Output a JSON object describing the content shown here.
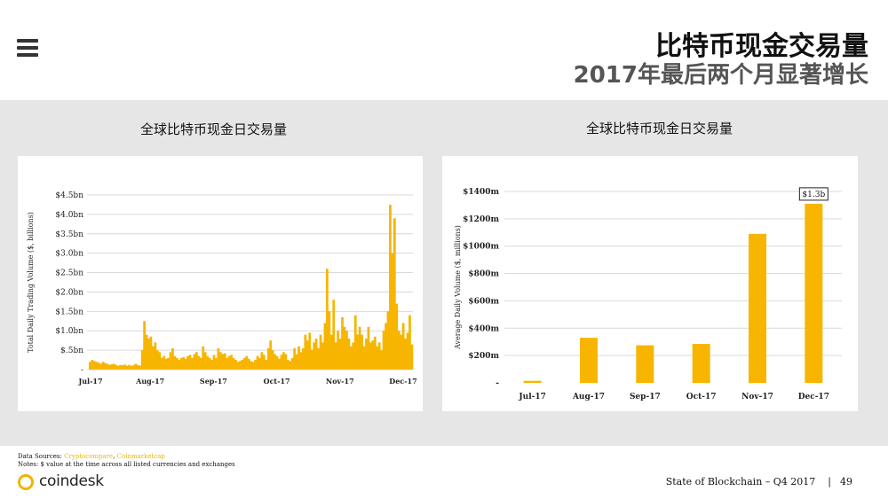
{
  "header": {
    "title_line1": "比特币现金交易量",
    "title_line2": "2017年最后两个月显著增长"
  },
  "colors": {
    "bar": "#f7b500",
    "grid": "#d9d9d9",
    "band": "#e6e6e6"
  },
  "icons": {
    "menu": "hamburger-menu-icon",
    "logo": "coindesk-logo"
  },
  "chart_data": [
    {
      "type": "bar",
      "title": "全球比特币现金日交易量",
      "xlabel": "",
      "ylabel": "Total Daily Trading Volume ($, billions)",
      "x_tick_labels": [
        "Jul-17",
        "Aug-17",
        "Sep-17",
        "Oct-17",
        "Nov-17",
        "Dec-17"
      ],
      "y_tick_labels": [
        "-",
        "$.5bn",
        "$1.0bn",
        "$1.5bn",
        "$2.0bn",
        "$2.5bn",
        "$3.0bn",
        "$3.5bn",
        "$4.0bn",
        "$4.5bn"
      ],
      "ylim": [
        0,
        4.5
      ],
      "grid": true,
      "series": [
        {
          "values": [
            0.2,
            0.25,
            0.22,
            0.2,
            0.18,
            0.15,
            0.2,
            0.17,
            0.15,
            0.12,
            0.14,
            0.15,
            0.12,
            0.1,
            0.12,
            0.11,
            0.13,
            0.1,
            0.12,
            0.1,
            0.11,
            0.15,
            0.12,
            0.1,
            0.5,
            1.25,
            0.9,
            0.8,
            0.85,
            0.6,
            0.7,
            0.5,
            0.45,
            0.3,
            0.35,
            0.28,
            0.3,
            0.45,
            0.55,
            0.35,
            0.3,
            0.25,
            0.3,
            0.32,
            0.28,
            0.35,
            0.38,
            0.3,
            0.4,
            0.45,
            0.35,
            0.3,
            0.6,
            0.45,
            0.35,
            0.3,
            0.25,
            0.38,
            0.3,
            0.55,
            0.45,
            0.4,
            0.42,
            0.3,
            0.35,
            0.38,
            0.3,
            0.25,
            0.2,
            0.22,
            0.25,
            0.3,
            0.35,
            0.28,
            0.22,
            0.2,
            0.25,
            0.35,
            0.3,
            0.45,
            0.38,
            0.25,
            0.55,
            0.75,
            0.5,
            0.4,
            0.35,
            0.28,
            0.38,
            0.45,
            0.4,
            0.25,
            0.22,
            0.3,
            0.55,
            0.4,
            0.6,
            0.45,
            0.55,
            0.9,
            0.75,
            0.95,
            0.5,
            0.7,
            0.8,
            0.55,
            0.9,
            0.7,
            1.2,
            2.6,
            1.5,
            0.9,
            1.8,
            0.7,
            1.0,
            0.8,
            1.35,
            1.1,
            1.0,
            0.8,
            0.6,
            0.7,
            1.4,
            0.9,
            1.1,
            0.9,
            0.6,
            0.8,
            1.1,
            0.7,
            0.75,
            0.85,
            0.6,
            0.7,
            0.5,
            1.0,
            1.2,
            1.5,
            4.25,
            3.0,
            3.9,
            1.7,
            1.0,
            0.9,
            1.2,
            0.8,
            0.95,
            1.4,
            0.65
          ]
        }
      ]
    },
    {
      "type": "bar",
      "title": "全球比特币现金日交易量",
      "xlabel": "",
      "ylabel": "Average Daily Volume ($, millions)",
      "categories": [
        "Jul-17",
        "Aug-17",
        "Sep-17",
        "Oct-17",
        "Nov-17",
        "Dec-17"
      ],
      "y_tick_labels": [
        "-",
        "$200m",
        "$400m",
        "$600m",
        "$800m",
        "$1000m",
        "$1200m",
        "$1400m"
      ],
      "ylim": [
        0,
        1400
      ],
      "grid": true,
      "series": [
        {
          "values": [
            15,
            330,
            275,
            285,
            1090,
            1310
          ]
        }
      ],
      "annotations": [
        {
          "category": "Dec-17",
          "text": "$1.3b"
        }
      ]
    }
  ],
  "footer": {
    "sources_label": "Data Sources:",
    "source_link_1": "Cryptocompare",
    "source_separator": ", ",
    "source_link_2": "Coinmarketcap",
    "notes": "Notes: $ value at the time across all listed currencies and exchanges",
    "logo_text": "coindesk",
    "report_title": "State of Blockchain – Q4 2017",
    "page_sep": "|",
    "page_number": "49"
  }
}
